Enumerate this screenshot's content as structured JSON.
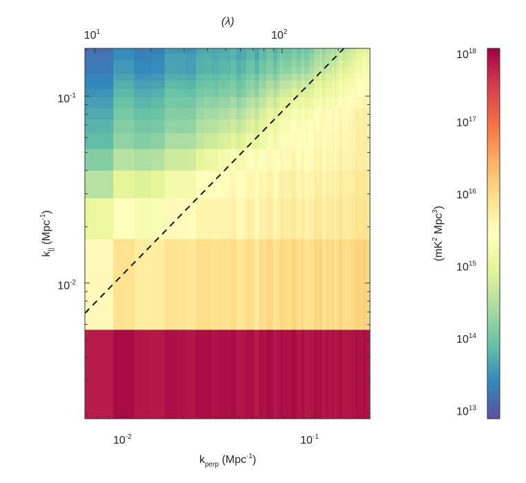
{
  "chart_data": {
    "type": "heatmap",
    "title": "(λ)",
    "xlabel": {
      "base": "k",
      "sub": "perp",
      "unit": " (Mpc",
      "exp": "-1",
      "close": ")"
    },
    "ylabel": {
      "base": "k",
      "sub": "||",
      "unit": " (Mpc",
      "exp": "-1",
      "close": ")"
    },
    "colorbar_label": {
      "open": "(mK",
      "exp1": "2",
      "mid": " Mpc",
      "exp2": "3",
      "close": ")"
    },
    "x_scale": "log",
    "y_scale": "log",
    "color_scale": "log",
    "xlim": [
      0.006,
      0.2
    ],
    "ylim": [
      0.00188,
      0.18
    ],
    "clim_log10": [
      12.87,
      18.0
    ],
    "colormap": "Spectral (reversed)",
    "colormap_stops": [
      "#5e4fa2",
      "#3288bd",
      "#66c2a5",
      "#abdda4",
      "#e6f598",
      "#ffffbf",
      "#fee08b",
      "#fdae61",
      "#f46d43",
      "#d53e4f",
      "#9e0142"
    ],
    "x_ticks": [
      {
        "base": "10",
        "exp": "-2",
        "value": 0.01
      },
      {
        "base": "10",
        "exp": "-1",
        "value": 0.1
      }
    ],
    "y_ticks": [
      {
        "base": "10",
        "exp": "-2",
        "value": 0.01
      },
      {
        "base": "10",
        "exp": "-1",
        "value": 0.1
      }
    ],
    "top_axis": {
      "label": "(λ)",
      "k_to_lambda": 1475,
      "ticks": [
        {
          "base": "10",
          "exp": "1",
          "value": 10
        },
        {
          "base": "10",
          "exp": "2",
          "value": 100
        }
      ]
    },
    "colorbar_ticks": [
      {
        "base": "10",
        "exp": "13",
        "value": 13
      },
      {
        "base": "10",
        "exp": "14",
        "value": 14
      },
      {
        "base": "10",
        "exp": "15",
        "value": 15
      },
      {
        "base": "10",
        "exp": "16",
        "value": 16
      },
      {
        "base": "10",
        "exp": "17",
        "value": 17
      },
      {
        "base": "10",
        "exp": "18",
        "value": 18
      }
    ],
    "kpar_bin_edges_log10": [
      -2.726,
      -2.248,
      -1.763,
      -1.544,
      -1.396,
      -1.281,
      -1.196,
      -1.122,
      -1.063,
      -1.004,
      -0.959,
      -0.915,
      -0.878,
      -0.841,
      -0.807,
      -0.77,
      -0.741
    ],
    "kperp_samples": [
      0.006,
      0.01,
      0.02,
      0.04,
      0.08,
      0.2
    ],
    "log10_power_rows": [
      [
        17.85,
        17.85,
        17.85,
        17.85,
        17.85,
        17.85
      ],
      [
        15.6,
        15.8,
        15.85,
        15.9,
        15.95,
        16.05
      ],
      [
        15.1,
        15.25,
        15.5,
        15.6,
        15.7,
        15.85
      ],
      [
        14.6,
        14.8,
        15.2,
        15.5,
        15.6,
        15.8
      ],
      [
        14.2,
        14.4,
        14.7,
        15.3,
        15.5,
        15.7
      ],
      [
        13.95,
        14.1,
        14.4,
        14.9,
        15.4,
        15.7
      ],
      [
        13.9,
        14.0,
        14.2,
        14.7,
        15.3,
        15.7
      ],
      [
        13.8,
        13.9,
        14.1,
        14.5,
        15.2,
        15.7
      ],
      [
        13.7,
        13.8,
        14.0,
        14.3,
        15.0,
        15.6
      ],
      [
        13.6,
        13.7,
        13.9,
        14.1,
        14.8,
        15.5
      ],
      [
        13.5,
        13.6,
        13.8,
        14.0,
        14.6,
        15.5
      ],
      [
        13.5,
        13.5,
        13.7,
        13.9,
        14.4,
        15.4
      ],
      [
        13.4,
        13.4,
        13.6,
        13.8,
        14.2,
        15.3
      ],
      [
        13.4,
        13.4,
        13.6,
        13.8,
        14.1,
        15.2
      ],
      [
        13.4,
        13.3,
        13.6,
        13.7,
        14.0,
        15.1
      ],
      [
        13.3,
        13.3,
        13.5,
        13.7,
        13.9,
        15.0
      ]
    ],
    "kperp_bin_width": 0.0025,
    "horizon_line": {
      "x": [
        0.006,
        0.145
      ],
      "y": [
        0.0069,
        0.18
      ],
      "style": "dashed"
    }
  }
}
